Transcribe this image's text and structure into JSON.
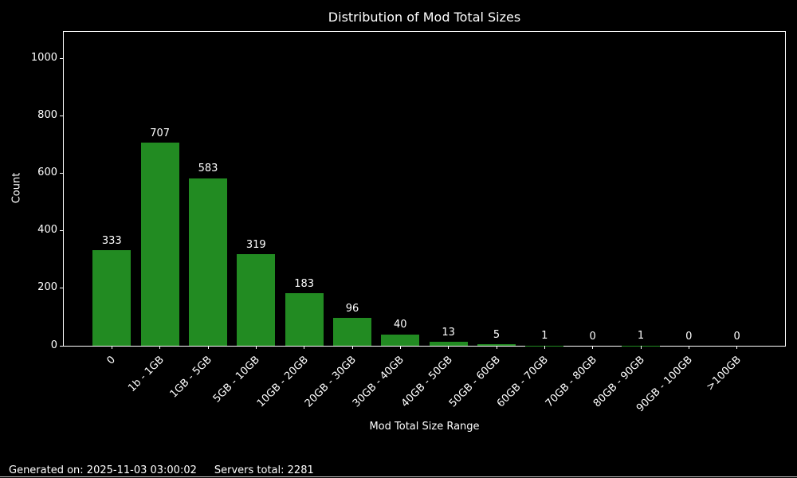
{
  "chart_data": {
    "type": "bar",
    "title": "Distribution of Mod Total Sizes",
    "xlabel": "Mod Total Size Range",
    "ylabel": "Count",
    "categories": [
      "0",
      "1b - 1GB",
      "1GB - 5GB",
      "5GB - 10GB",
      "10GB - 20GB",
      "20GB - 30GB",
      "30GB - 40GB",
      "40GB - 50GB",
      "50GB - 60GB",
      "60GB - 70GB",
      "70GB - 80GB",
      "80GB - 90GB",
      "90GB - 100GB",
      ">100GB"
    ],
    "values": [
      333,
      707,
      583,
      319,
      183,
      96,
      40,
      13,
      5,
      1,
      0,
      1,
      0,
      0
    ],
    "yticks": [
      0,
      200,
      400,
      600,
      800,
      1000
    ],
    "ylim": [
      0,
      1092
    ],
    "bar_color": "#228b22",
    "background": "#000000",
    "text_color": "#ffffff",
    "grid": false,
    "legend": null
  },
  "footer": {
    "generated_label": "Generated on: 2025-11-03 03:00:02",
    "servers_label": "Servers total: 2281"
  }
}
